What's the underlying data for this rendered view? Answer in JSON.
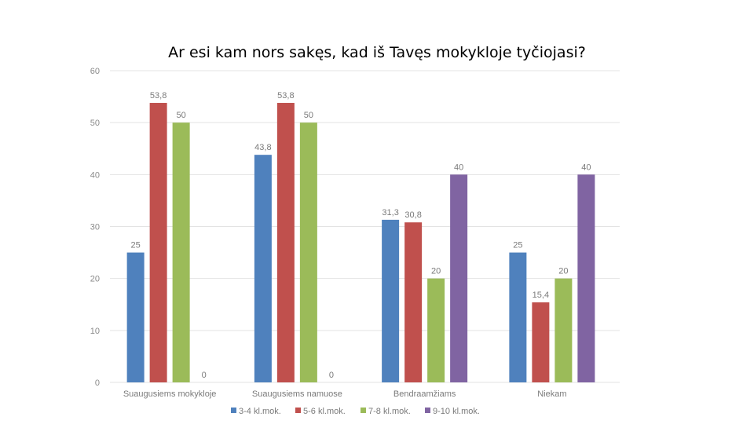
{
  "chart_data": {
    "type": "bar",
    "title": "Ar esi kam nors sakęs, kad iš Tavęs mokykloje tyčiojasi?",
    "categories": [
      "Suaugusiems mokykloje",
      "Suaugusiems namuose",
      "Bendraamžiams",
      "Niekam"
    ],
    "ylim": [
      0,
      60
    ],
    "yticks": [
      "0",
      "10",
      "20",
      "30",
      "40",
      "50",
      "60"
    ],
    "grid": true,
    "legend_position": "bottom",
    "series": [
      {
        "name": "3-4 kl.mok.",
        "color": "#4f81bd",
        "values": [
          25,
          43.8,
          31.3,
          25
        ],
        "labels": [
          "25",
          "43,8",
          "31,3",
          "25"
        ]
      },
      {
        "name": "5-6 kl.mok.",
        "color": "#c0504d",
        "values": [
          53.8,
          53.8,
          30.8,
          15.4
        ],
        "labels": [
          "53,8",
          "53,8",
          "30,8",
          "15,4"
        ]
      },
      {
        "name": "7-8 kl.mok.",
        "color": "#9bbb59",
        "values": [
          50,
          50,
          20,
          20
        ],
        "labels": [
          "50",
          "50",
          "20",
          "20"
        ]
      },
      {
        "name": "9-10 kl.mok.",
        "color": "#8064a2",
        "values": [
          0,
          0,
          40,
          40
        ],
        "labels": [
          "0",
          "0",
          "40",
          "40"
        ]
      }
    ]
  }
}
